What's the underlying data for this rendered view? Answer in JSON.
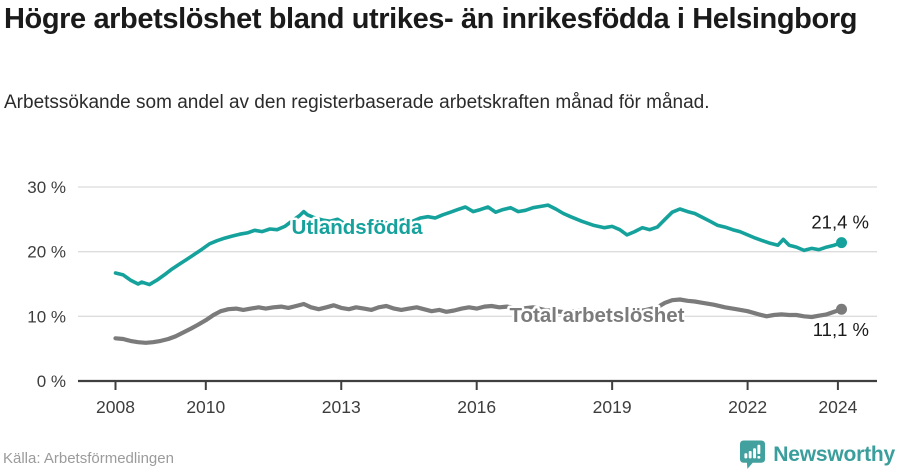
{
  "header": {
    "title": "Högre arbetslöshet bland utrikes- än inrikesfödda i Helsingborg",
    "subtitle": "Arbetssökande som andel av den registerbaserade arbetskraften månad för månad."
  },
  "footer": {
    "source": "Källa: Arbetsförmedlingen",
    "brand": "Newsworthy"
  },
  "colors": {
    "foreign_born_line": "#16a29c",
    "total_line": "#7b7b7b",
    "annotation_text": "#1a1a1a",
    "axis": "#3f3f3f",
    "grid": "#dcdcdc",
    "tick_label": "#3d3d3d",
    "brand_teal": "#42a09e"
  },
  "chart_data": {
    "type": "line",
    "title": "Högre arbetslöshet bland utrikes- än inrikesfödda i Helsingborg",
    "xlabel": "",
    "ylabel": "",
    "grid": true,
    "x_axis": {
      "ticks": [
        2008,
        2010,
        2013,
        2016,
        2019,
        2022,
        2024
      ],
      "tick_labels": [
        "2008",
        "2010",
        "2013",
        "2016",
        "2019",
        "2022",
        "2024"
      ],
      "range": [
        2007.9,
        2024.4
      ]
    },
    "y_axis": {
      "ticks": [
        0,
        10,
        20,
        30
      ],
      "tick_labels": [
        "0 %",
        "10 %",
        "20 %",
        "30 %"
      ],
      "range": [
        0,
        30
      ],
      "unit": "%"
    },
    "series": [
      {
        "name": "Utlandsfödda",
        "end_label": "21,4 %",
        "end_value": 21.4,
        "color": "#16a29c",
        "points": [
          [
            2008.0,
            16.7
          ],
          [
            2008.17,
            16.4
          ],
          [
            2008.33,
            15.6
          ],
          [
            2008.5,
            15.0
          ],
          [
            2008.58,
            15.3
          ],
          [
            2008.75,
            14.9
          ],
          [
            2008.92,
            15.6
          ],
          [
            2009.08,
            16.4
          ],
          [
            2009.25,
            17.3
          ],
          [
            2009.42,
            18.1
          ],
          [
            2009.58,
            18.8
          ],
          [
            2009.75,
            19.6
          ],
          [
            2009.92,
            20.4
          ],
          [
            2010.08,
            21.2
          ],
          [
            2010.25,
            21.7
          ],
          [
            2010.42,
            22.1
          ],
          [
            2010.58,
            22.4
          ],
          [
            2010.75,
            22.7
          ],
          [
            2010.92,
            22.9
          ],
          [
            2011.08,
            23.3
          ],
          [
            2011.25,
            23.1
          ],
          [
            2011.42,
            23.5
          ],
          [
            2011.58,
            23.4
          ],
          [
            2011.75,
            23.9
          ],
          [
            2011.92,
            24.8
          ],
          [
            2012.08,
            25.6
          ],
          [
            2012.17,
            26.2
          ],
          [
            2012.25,
            25.7
          ],
          [
            2012.42,
            25.2
          ],
          [
            2012.58,
            24.9
          ],
          [
            2012.75,
            24.7
          ],
          [
            2012.92,
            25.0
          ],
          [
            2013.08,
            24.3
          ],
          [
            2013.25,
            24.0
          ],
          [
            2013.42,
            24.3
          ],
          [
            2013.58,
            23.9
          ],
          [
            2013.75,
            24.3
          ],
          [
            2013.92,
            24.6
          ],
          [
            2014.08,
            24.3
          ],
          [
            2014.25,
            24.7
          ],
          [
            2014.42,
            25.0
          ],
          [
            2014.58,
            24.7
          ],
          [
            2014.75,
            25.2
          ],
          [
            2014.92,
            25.4
          ],
          [
            2015.08,
            25.2
          ],
          [
            2015.25,
            25.7
          ],
          [
            2015.42,
            26.1
          ],
          [
            2015.58,
            26.5
          ],
          [
            2015.75,
            26.9
          ],
          [
            2015.92,
            26.2
          ],
          [
            2016.08,
            26.5
          ],
          [
            2016.25,
            26.9
          ],
          [
            2016.42,
            26.1
          ],
          [
            2016.58,
            26.5
          ],
          [
            2016.75,
            26.8
          ],
          [
            2016.92,
            26.2
          ],
          [
            2017.08,
            26.4
          ],
          [
            2017.25,
            26.8
          ],
          [
            2017.42,
            27.0
          ],
          [
            2017.58,
            27.2
          ],
          [
            2017.75,
            26.6
          ],
          [
            2017.92,
            25.9
          ],
          [
            2018.08,
            25.4
          ],
          [
            2018.33,
            24.7
          ],
          [
            2018.58,
            24.1
          ],
          [
            2018.83,
            23.7
          ],
          [
            2019.0,
            23.9
          ],
          [
            2019.17,
            23.4
          ],
          [
            2019.33,
            22.6
          ],
          [
            2019.5,
            23.1
          ],
          [
            2019.67,
            23.7
          ],
          [
            2019.83,
            23.4
          ],
          [
            2020.0,
            23.8
          ],
          [
            2020.17,
            25.0
          ],
          [
            2020.33,
            26.1
          ],
          [
            2020.5,
            26.6
          ],
          [
            2020.67,
            26.2
          ],
          [
            2020.83,
            25.9
          ],
          [
            2021.0,
            25.3
          ],
          [
            2021.17,
            24.7
          ],
          [
            2021.33,
            24.1
          ],
          [
            2021.5,
            23.8
          ],
          [
            2021.67,
            23.4
          ],
          [
            2021.83,
            23.1
          ],
          [
            2022.0,
            22.6
          ],
          [
            2022.17,
            22.1
          ],
          [
            2022.33,
            21.7
          ],
          [
            2022.5,
            21.3
          ],
          [
            2022.67,
            21.0
          ],
          [
            2022.79,
            21.9
          ],
          [
            2022.92,
            21.0
          ],
          [
            2023.08,
            20.7
          ],
          [
            2023.25,
            20.2
          ],
          [
            2023.42,
            20.5
          ],
          [
            2023.58,
            20.3
          ],
          [
            2023.75,
            20.7
          ],
          [
            2023.92,
            21.0
          ],
          [
            2024.08,
            21.4
          ]
        ]
      },
      {
        "name": "Total arbetslöshet",
        "end_label": "11,1 %",
        "end_value": 11.1,
        "color": "#7b7b7b",
        "points": [
          [
            2008.0,
            6.6
          ],
          [
            2008.17,
            6.5
          ],
          [
            2008.33,
            6.2
          ],
          [
            2008.5,
            6.0
          ],
          [
            2008.67,
            5.9
          ],
          [
            2008.83,
            6.0
          ],
          [
            2009.0,
            6.2
          ],
          [
            2009.17,
            6.5
          ],
          [
            2009.33,
            6.9
          ],
          [
            2009.5,
            7.5
          ],
          [
            2009.67,
            8.1
          ],
          [
            2009.83,
            8.7
          ],
          [
            2010.0,
            9.4
          ],
          [
            2010.17,
            10.2
          ],
          [
            2010.33,
            10.8
          ],
          [
            2010.5,
            11.1
          ],
          [
            2010.67,
            11.2
          ],
          [
            2010.83,
            11.0
          ],
          [
            2011.0,
            11.2
          ],
          [
            2011.17,
            11.4
          ],
          [
            2011.33,
            11.2
          ],
          [
            2011.5,
            11.4
          ],
          [
            2011.67,
            11.5
          ],
          [
            2011.83,
            11.3
          ],
          [
            2012.0,
            11.6
          ],
          [
            2012.17,
            11.9
          ],
          [
            2012.33,
            11.4
          ],
          [
            2012.5,
            11.1
          ],
          [
            2012.67,
            11.4
          ],
          [
            2012.83,
            11.7
          ],
          [
            2013.0,
            11.3
          ],
          [
            2013.17,
            11.1
          ],
          [
            2013.33,
            11.4
          ],
          [
            2013.5,
            11.2
          ],
          [
            2013.67,
            11.0
          ],
          [
            2013.83,
            11.4
          ],
          [
            2014.0,
            11.6
          ],
          [
            2014.17,
            11.2
          ],
          [
            2014.33,
            11.0
          ],
          [
            2014.5,
            11.2
          ],
          [
            2014.67,
            11.4
          ],
          [
            2014.83,
            11.1
          ],
          [
            2015.0,
            10.8
          ],
          [
            2015.17,
            11.0
          ],
          [
            2015.33,
            10.7
          ],
          [
            2015.5,
            10.9
          ],
          [
            2015.67,
            11.2
          ],
          [
            2015.83,
            11.4
          ],
          [
            2016.0,
            11.2
          ],
          [
            2016.17,
            11.5
          ],
          [
            2016.33,
            11.6
          ],
          [
            2016.5,
            11.4
          ],
          [
            2016.67,
            11.5
          ],
          [
            2016.83,
            11.3
          ],
          [
            2017.0,
            11.2
          ],
          [
            2017.25,
            11.4
          ],
          [
            2017.5,
            11.0
          ],
          [
            2017.75,
            10.8
          ],
          [
            2018.0,
            10.6
          ],
          [
            2018.25,
            10.9
          ],
          [
            2018.5,
            10.7
          ],
          [
            2018.75,
            10.5
          ],
          [
            2019.0,
            10.4
          ],
          [
            2019.25,
            10.6
          ],
          [
            2019.5,
            10.7
          ],
          [
            2019.75,
            11.0
          ],
          [
            2020.0,
            11.4
          ],
          [
            2020.17,
            12.1
          ],
          [
            2020.33,
            12.5
          ],
          [
            2020.5,
            12.6
          ],
          [
            2020.67,
            12.4
          ],
          [
            2020.83,
            12.3
          ],
          [
            2021.0,
            12.1
          ],
          [
            2021.25,
            11.8
          ],
          [
            2021.5,
            11.4
          ],
          [
            2021.75,
            11.1
          ],
          [
            2022.0,
            10.8
          ],
          [
            2022.25,
            10.3
          ],
          [
            2022.42,
            10.0
          ],
          [
            2022.58,
            10.2
          ],
          [
            2022.75,
            10.3
          ],
          [
            2022.92,
            10.2
          ],
          [
            2023.08,
            10.2
          ],
          [
            2023.25,
            10.0
          ],
          [
            2023.42,
            9.9
          ],
          [
            2023.58,
            10.1
          ],
          [
            2023.75,
            10.3
          ],
          [
            2023.92,
            10.7
          ],
          [
            2024.08,
            11.1
          ]
        ]
      }
    ],
    "legend_position": "inline-labels"
  }
}
